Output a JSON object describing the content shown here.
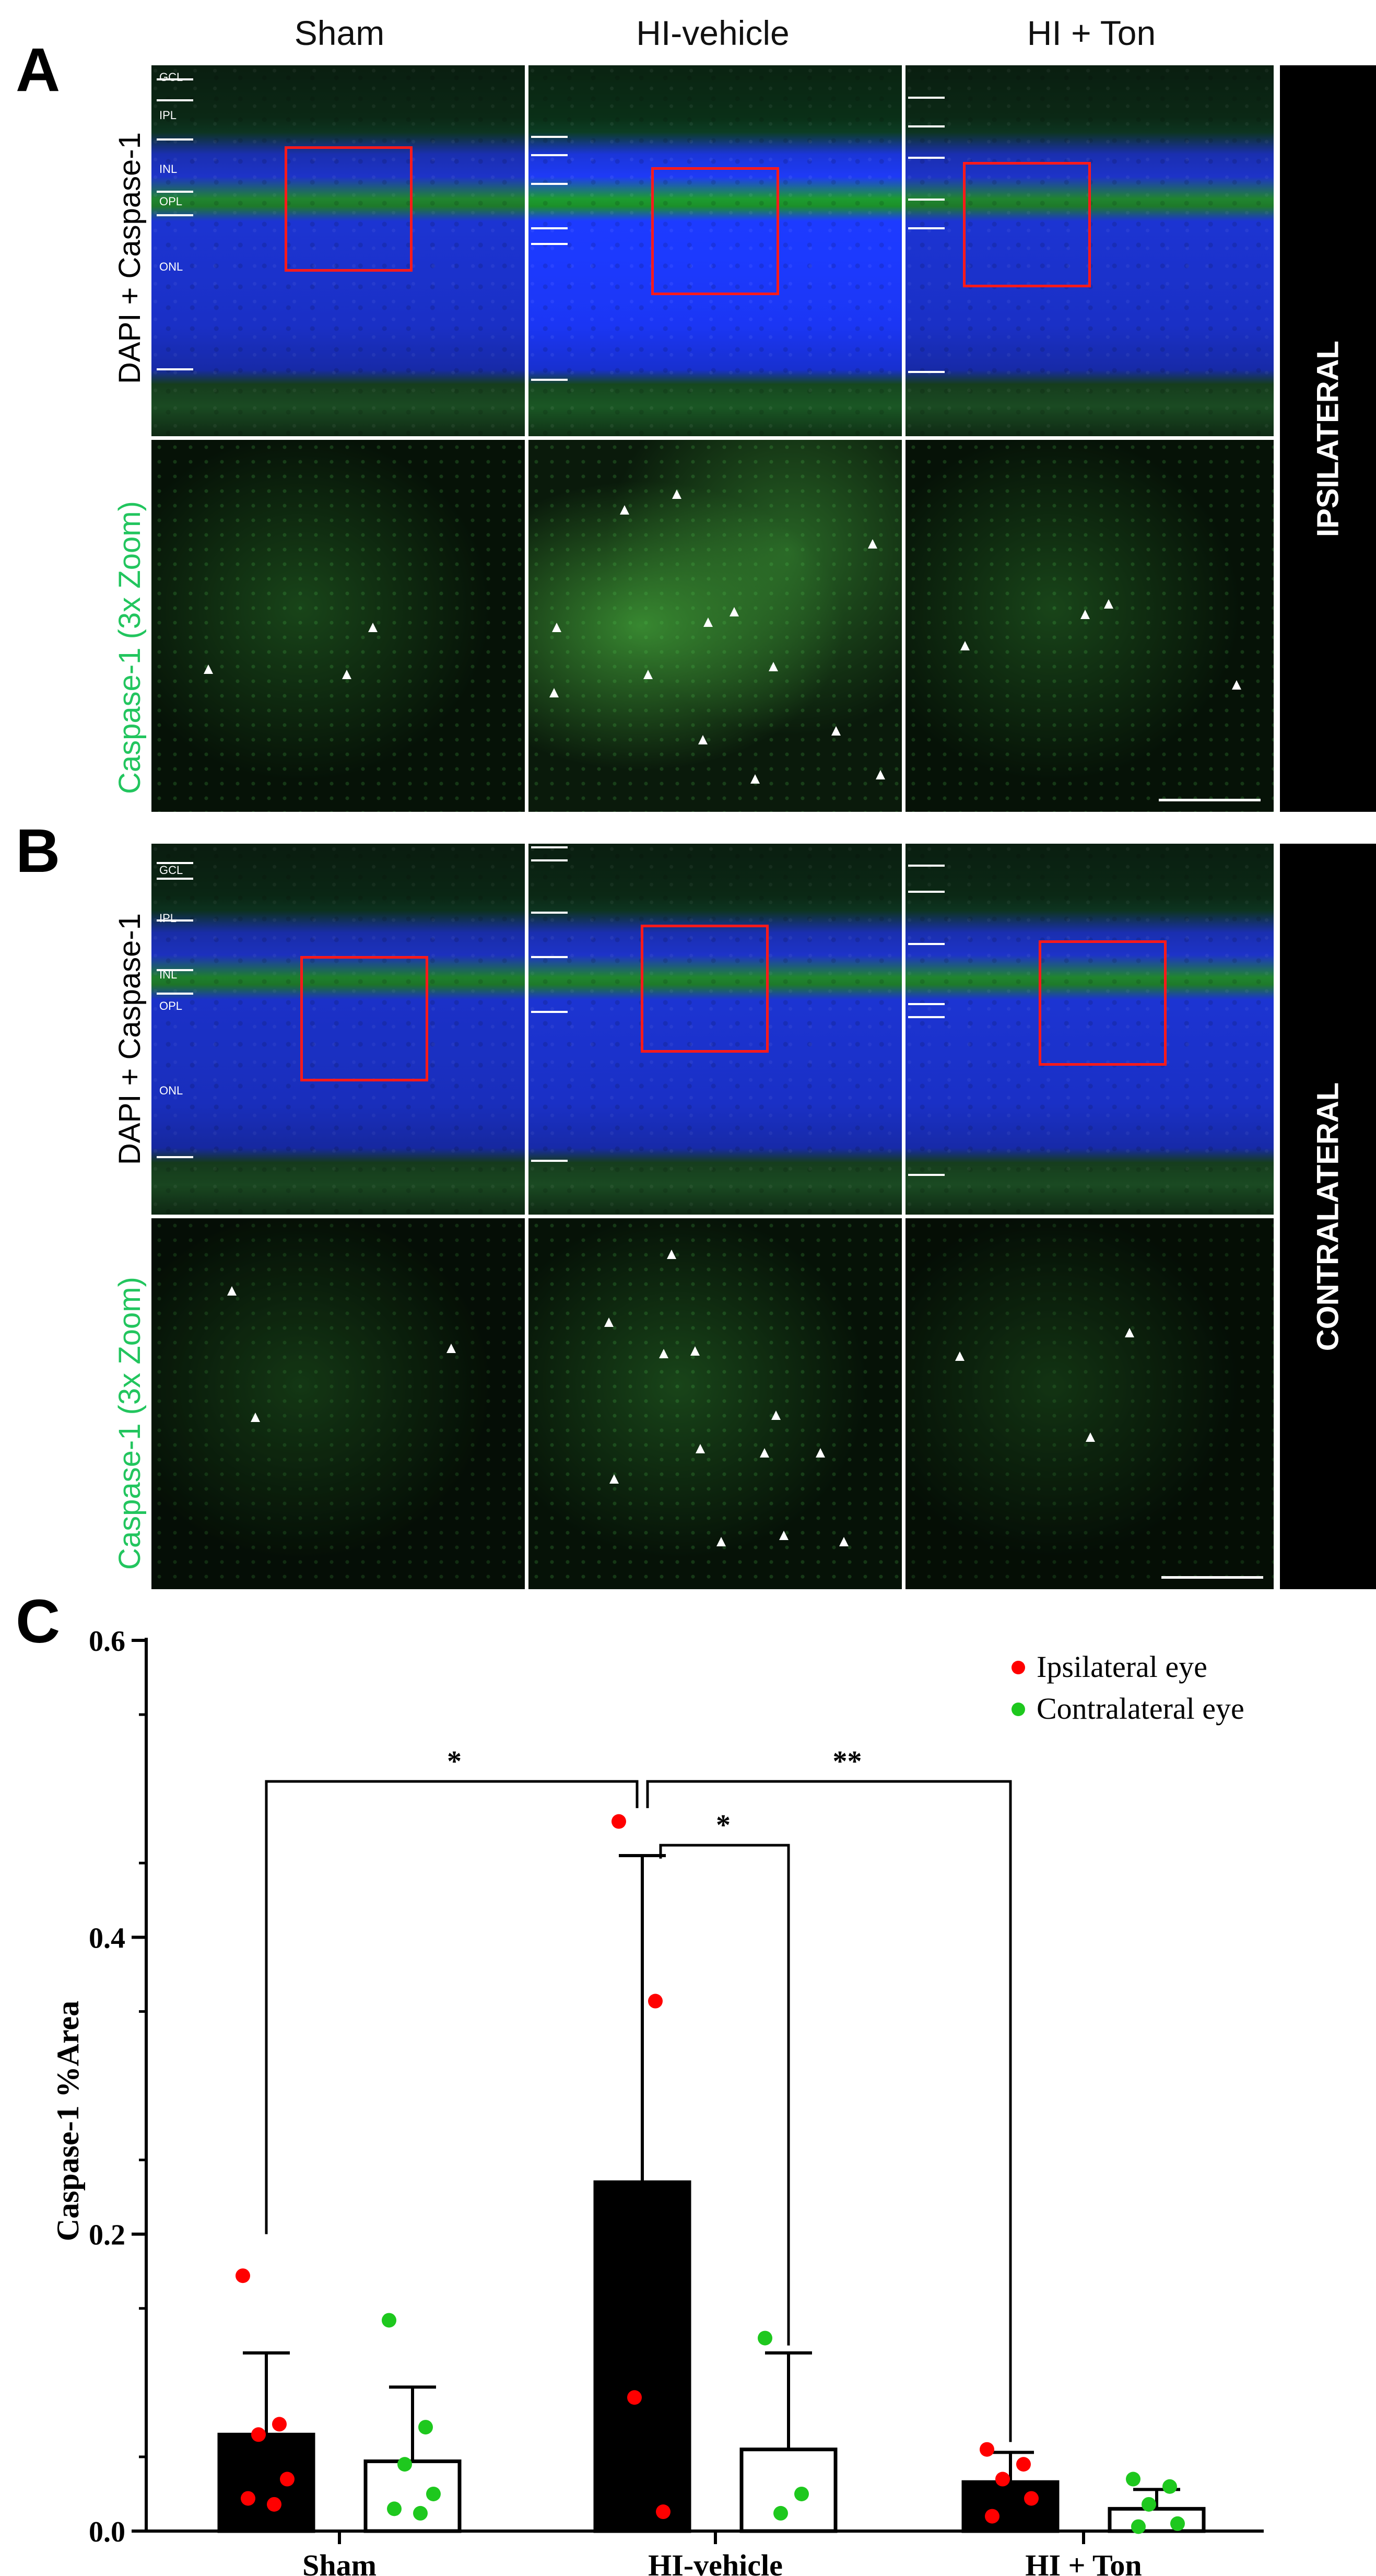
{
  "columns": [
    "Sham",
    "HI-vehicle",
    "HI + Ton"
  ],
  "panels": {
    "a": {
      "letter": "A",
      "row1_label": "DAPI + Caspase-1",
      "row2_label": "Caspase-1 (3x Zoom)",
      "side_label": "IPSILATERAL",
      "layers": [
        "GCL",
        "IPL",
        "INL",
        "OPL",
        "ONL"
      ]
    },
    "b": {
      "letter": "B",
      "row1_label": "DAPI + Caspase-1",
      "row2_label": "Caspase-1 (3x Zoom)",
      "side_label": "CONTRALATERAL",
      "layers": [
        "GCL",
        "IPL",
        "INL",
        "OPL",
        "ONL"
      ]
    },
    "c": {
      "letter": "C"
    }
  },
  "colors": {
    "ipsilateral": "#ff0000",
    "contralateral": "#1ec81e",
    "bar_filled": "#000000",
    "roi": "#ff1a1a",
    "green_label": "#22c55e"
  },
  "chart_data": {
    "type": "bar",
    "title": "",
    "xlabel": "",
    "ylabel": "Caspase-1 %Area",
    "ylim": [
      0,
      0.6
    ],
    "yticks": [
      "0.0",
      "0.2",
      "0.4",
      "0.6"
    ],
    "categories": [
      "Sham",
      "HI-vehicle",
      "HI + Ton"
    ],
    "legend_position": "top-right",
    "series": [
      {
        "name": "Ipsilateral eye",
        "fill": "filled",
        "values": [
          0.065,
          0.235,
          0.033
        ],
        "errors": [
          0.055,
          0.22,
          0.02
        ],
        "points": [
          [
            0.172,
            0.072,
            0.065,
            0.035,
            0.022,
            0.018
          ],
          [
            0.478,
            0.357,
            0.09,
            0.013
          ],
          [
            0.055,
            0.045,
            0.035,
            0.022,
            0.01
          ]
        ]
      },
      {
        "name": "Contralateral eye",
        "fill": "open",
        "values": [
          0.047,
          0.055,
          0.015
        ],
        "errors": [
          0.05,
          0.065,
          0.013
        ],
        "points": [
          [
            0.142,
            0.07,
            0.045,
            0.025,
            0.015,
            0.012
          ],
          [
            0.13,
            0.025,
            0.012
          ],
          [
            0.035,
            0.03,
            0.018,
            0.005,
            0.003
          ]
        ]
      }
    ],
    "significance": [
      {
        "from": "Sham ipsilateral",
        "to": "HI-vehicle ipsilateral",
        "label": "*"
      },
      {
        "from": "HI-vehicle ipsilateral",
        "to": "HI-vehicle contralateral",
        "label": "*"
      },
      {
        "from": "HI-vehicle ipsilateral",
        "to": "HI + Ton ipsilateral",
        "label": "**"
      }
    ]
  }
}
